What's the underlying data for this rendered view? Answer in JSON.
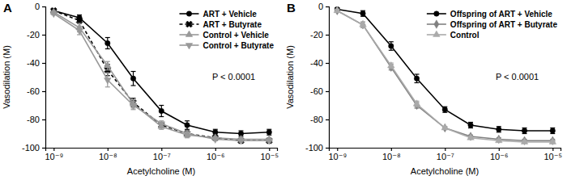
{
  "chart_data": [
    {
      "type": "line",
      "title": "A",
      "x": [
        1e-09,
        3e-09,
        1e-08,
        3e-08,
        1e-07,
        3e-07,
        1e-06,
        3e-06,
        1e-05
      ],
      "xlim": [
        7e-10,
        1.4e-05
      ],
      "xticks": [
        {
          "value": 1e-09,
          "label": "10⁻⁹"
        },
        {
          "value": 1e-08,
          "label": "10⁻⁸"
        },
        {
          "value": 1e-07,
          "label": "10⁻⁷"
        },
        {
          "value": 1e-06,
          "label": "10⁻⁶"
        },
        {
          "value": 1e-05,
          "label": "10⁻⁵"
        }
      ],
      "log": "x",
      "ylim": [
        -100,
        0
      ],
      "yticks": [
        0,
        -20,
        -40,
        -60,
        -80,
        -100
      ],
      "x_label": "Acetylcholine (M)",
      "y_label": "Vasodilation (M)",
      "annotation": "P < 0.0001",
      "legend": "upper right",
      "series": [
        {
          "name": "ART + Vehicle",
          "color": "#000000",
          "marker": "circle",
          "line_style": "solid",
          "values": [
            -3,
            -8,
            -26,
            -51,
            -74,
            -84,
            -89,
            -90,
            -89
          ],
          "errors": [
            1,
            2,
            4,
            5,
            4,
            3,
            2,
            2,
            2
          ]
        },
        {
          "name": "ART + Butyrate",
          "color": "#000000",
          "marker": "x",
          "line_style": "dashed",
          "values": [
            -3,
            -10,
            -45,
            -68,
            -84,
            -90,
            -93,
            -95,
            -95
          ],
          "errors": [
            1,
            2,
            4,
            3,
            2,
            2,
            1,
            1,
            1
          ]
        },
        {
          "name": "Control + Vehicle",
          "color": "#999999",
          "marker": "triangle-up",
          "line_style": "solid",
          "values": [
            -4,
            -15,
            -42,
            -69,
            -85,
            -91,
            -93,
            -94,
            -94
          ],
          "errors": [
            1,
            3,
            3,
            3,
            2,
            2,
            1,
            1,
            1
          ]
        },
        {
          "name": "Control + Butyrate",
          "color": "#999999",
          "marker": "triangle-down",
          "line_style": "solid",
          "values": [
            -5,
            -17,
            -52,
            -70,
            -83,
            -90,
            -94,
            -95,
            -95
          ],
          "errors": [
            1,
            3,
            5,
            3,
            2,
            2,
            1,
            1,
            1
          ]
        }
      ]
    },
    {
      "type": "line",
      "title": "B",
      "x": [
        1e-09,
        3e-09,
        1e-08,
        3e-08,
        1e-07,
        3e-07,
        1e-06,
        3e-06,
        1e-05
      ],
      "xlim": [
        7e-10,
        1.4e-05
      ],
      "xticks": [
        {
          "value": 1e-09,
          "label": "10⁻⁹"
        },
        {
          "value": 1e-08,
          "label": "10⁻⁸"
        },
        {
          "value": 1e-07,
          "label": "10⁻⁷"
        },
        {
          "value": 1e-06,
          "label": "10⁻⁶"
        },
        {
          "value": 1e-05,
          "label": "10⁻⁵"
        }
      ],
      "log": "x",
      "ylim": [
        -100,
        0
      ],
      "yticks": [
        0,
        -20,
        -40,
        -60,
        -80,
        -100
      ],
      "x_label": "Acetylcholine (M)",
      "y_label": "Vasodilation (M)",
      "annotation": "P < 0.0001",
      "legend": "upper right",
      "series": [
        {
          "name": "Offspring of ART + Vehicle",
          "color": "#000000",
          "marker": "circle",
          "line_style": "solid",
          "values": [
            -2,
            -5,
            -28,
            -51,
            -73,
            -84,
            -87,
            -88,
            -88
          ],
          "errors": [
            1,
            2,
            3,
            3,
            2,
            2,
            2,
            2,
            2
          ]
        },
        {
          "name": "Offspring of ART + Butyrate",
          "color": "#808080",
          "marker": "diamond",
          "line_style": "solid",
          "values": [
            -3,
            -13,
            -43,
            -70,
            -86,
            -92,
            -94,
            -95,
            -95
          ],
          "errors": [
            1,
            2,
            2,
            2,
            1,
            1,
            1,
            1,
            1
          ]
        },
        {
          "name": "Control",
          "color": "#aaaaaa",
          "marker": "triangle-up",
          "line_style": "solid",
          "values": [
            -3,
            -13,
            -42,
            -69,
            -86,
            -93,
            -95,
            -96,
            -96
          ],
          "errors": [
            1,
            2,
            2,
            2,
            1,
            1,
            1,
            1,
            1
          ]
        }
      ]
    }
  ]
}
